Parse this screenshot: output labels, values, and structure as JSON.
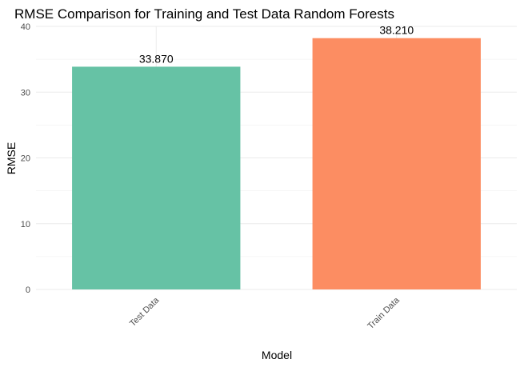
{
  "chart_data": {
    "type": "bar",
    "title": "RMSE Comparison for Training and Test Data Random Forests",
    "xlabel": "Model",
    "ylabel": "RMSE",
    "categories": [
      "Test Data",
      "Train Data"
    ],
    "values": [
      33.87,
      38.21
    ],
    "data_labels": [
      "33.870",
      "38.210"
    ],
    "colors": [
      "#66c2a5",
      "#fc8d62"
    ],
    "ylim": [
      0,
      40
    ],
    "yticks": [
      0,
      10,
      20,
      30,
      40
    ],
    "grid": true,
    "legend": "none"
  }
}
